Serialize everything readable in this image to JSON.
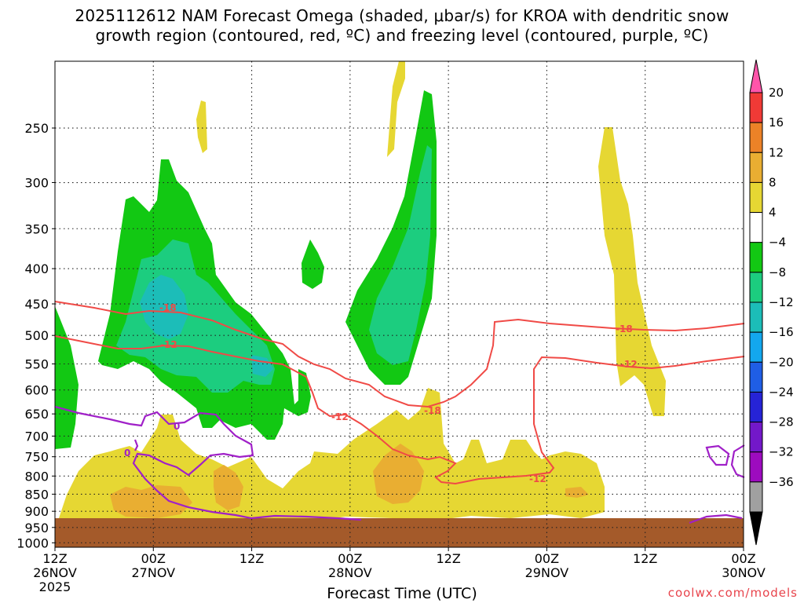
{
  "title_line1": "2025112612 NAM Forecast Omega (shaded, μbar/s) for KROA with dendritic snow",
  "title_line2": "growth region (contoured, red, ºC) and freezing level (contoured, purple, ºC)",
  "credit": "coolwx.com/models",
  "chart_data": {
    "type": "time-height contour",
    "title": "2025112612 NAM Forecast Omega (shaded, μbar/s) for KROA with dendritic snow growth region (contoured, red, ºC) and freezing level (contoured, purple, ºC)",
    "xlabel": "Forecast Time (UTC)",
    "ylabel": "",
    "x_ticks": [
      {
        "hour": 0,
        "line1": "12Z",
        "line2": "26NOV",
        "line3": "2025"
      },
      {
        "hour": 12,
        "line1": "00Z",
        "line2": "27NOV",
        "line3": ""
      },
      {
        "hour": 24,
        "line1": "12Z",
        "line2": "",
        "line3": ""
      },
      {
        "hour": 36,
        "line1": "00Z",
        "line2": "28NOV",
        "line3": ""
      },
      {
        "hour": 48,
        "line1": "12Z",
        "line2": "",
        "line3": ""
      },
      {
        "hour": 60,
        "line1": "00Z",
        "line2": "29NOV",
        "line3": ""
      },
      {
        "hour": 72,
        "line1": "12Z",
        "line2": "",
        "line3": ""
      },
      {
        "hour": 84,
        "line1": "00Z",
        "line2": "30NOV",
        "line3": ""
      }
    ],
    "x_range_hours": [
      0,
      84
    ],
    "y_ticks_hpa": [
      "250",
      "300",
      "350",
      "400",
      "450",
      "500",
      "550",
      "600",
      "650",
      "700",
      "750",
      "800",
      "850",
      "900",
      "950",
      "1000"
    ],
    "y_range_hpa": [
      200,
      1015
    ],
    "ground_pressure_hpa": 960,
    "colorbar": {
      "labels": [
        "20",
        "16",
        "12",
        "8",
        "4",
        "−4",
        "−8",
        "−12",
        "−16",
        "−20",
        "−24",
        "−28",
        "−32",
        "−36"
      ],
      "colors": [
        "#ff55aa",
        "#f03a36",
        "#ec8227",
        "#e9ae32",
        "#e6d733",
        "#ffffff",
        "#12c813",
        "#1ccd7f",
        "#1cbdb8",
        "#13a7ee",
        "#1f5ee5",
        "#2623d6",
        "#7318c9",
        "#9d0bbf",
        "#a0a0a0",
        "#000000"
      ]
    },
    "omega_regions": [
      {
        "value_range": "4 to 8",
        "color": "#e6d733",
        "description": "low-level upward motion 750-950 hPa across most of the period"
      },
      {
        "value_range": "8 to 12",
        "color": "#e9ae32",
        "description": "embedded maxima near 00Z 27NOV and 06Z 28NOV"
      },
      {
        "value_range": "-4 to -8",
        "color": "#12c813",
        "description": "subsidence aloft near 00Z 27NOV and 06Z 28NOV"
      },
      {
        "value_range": "-8 to -12",
        "color": "#1ccd7f",
        "description": "stronger subsidence cores"
      },
      {
        "value_range": "-12 to -16",
        "color": "#1cbdb8",
        "description": "strongest core near 03Z 27NOV around 500 hPa"
      }
    ],
    "temperature_contours": [
      {
        "label": "-18",
        "color": "#f04a46"
      },
      {
        "label": "-12",
        "color": "#f04a46"
      },
      {
        "label": "0",
        "color": "#a020c8"
      }
    ]
  }
}
